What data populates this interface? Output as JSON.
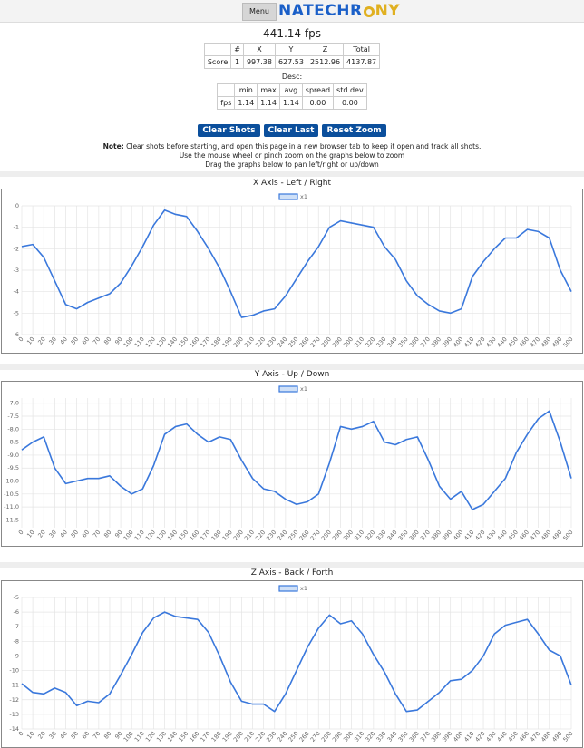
{
  "header": {
    "menu": "Menu",
    "logo_main": "NATECHR",
    "logo_accent": "NY"
  },
  "fps": "441.14 fps",
  "score_table": {
    "header": [
      "#",
      "X",
      "Y",
      "Z",
      "Total"
    ],
    "rows": [
      [
        "Score",
        "1",
        "997.38",
        "627.53",
        "2512.96",
        "4137.87"
      ]
    ]
  },
  "desc_label": "Desc:",
  "desc_table": {
    "header": [
      "min",
      "max",
      "avg",
      "spread",
      "std dev"
    ],
    "rows": [
      [
        "fps",
        "1.14",
        "1.14",
        "1.14",
        "0.00",
        "0.00"
      ]
    ]
  },
  "buttons": [
    "Clear Shots",
    "Clear Last",
    "Reset Zoom"
  ],
  "note": {
    "label": "Note:",
    "lines": [
      "Clear shots before starting, and open this page in a new browser tab to keep it open and track all shots.",
      "Use the mouse wheel or pinch zoom on the graphs below to zoom",
      "Drag the graphs below to pan left/right or up/down"
    ]
  },
  "chart_data": [
    {
      "type": "line",
      "title": "X Axis - Left / Right",
      "x": [
        0,
        10,
        20,
        30,
        40,
        50,
        60,
        70,
        80,
        90,
        100,
        110,
        120,
        130,
        140,
        150,
        160,
        170,
        180,
        190,
        200,
        210,
        220,
        230,
        240,
        250,
        260,
        270,
        280,
        290,
        300,
        310,
        320,
        330,
        340,
        350,
        360,
        370,
        380,
        390,
        400,
        410,
        420,
        430,
        440,
        450,
        460,
        470,
        480,
        490,
        500
      ],
      "series": [
        {
          "name": "x1",
          "color": "#3a78dc",
          "values": [
            -1.9,
            -1.8,
            -2.4,
            -3.5,
            -4.6,
            -4.8,
            -4.5,
            -4.3,
            -4.1,
            -3.6,
            -2.8,
            -1.9,
            -0.9,
            -0.2,
            -0.4,
            -0.5,
            -1.2,
            -2.0,
            -2.9,
            -4.0,
            -5.2,
            -5.1,
            -4.9,
            -4.8,
            -4.2,
            -3.4,
            -2.6,
            -1.9,
            -1.0,
            -0.7,
            -0.8,
            -0.9,
            -1.0,
            -1.9,
            -2.5,
            -3.5,
            -4.2,
            -4.6,
            -4.9,
            -5.0,
            -4.8,
            -3.3,
            -2.6,
            -2.0,
            -1.5,
            -1.5,
            -1.1,
            -1.2,
            -1.5,
            -3.0,
            -4.0
          ]
        }
      ],
      "xlim": [
        0,
        500
      ],
      "xticks": [
        0,
        10,
        20,
        30,
        40,
        50,
        60,
        70,
        80,
        90,
        100,
        110,
        120,
        130,
        140,
        150,
        160,
        170,
        180,
        190,
        200,
        210,
        220,
        230,
        240,
        250,
        260,
        270,
        280,
        290,
        300,
        310,
        320,
        330,
        340,
        350,
        360,
        370,
        380,
        390,
        400,
        410,
        420,
        430,
        440,
        450,
        460,
        470,
        480,
        490,
        500
      ],
      "ylim": [
        -6,
        0
      ],
      "yticks": [
        0,
        -1,
        -2,
        -3,
        -4,
        -5,
        -6
      ],
      "grid": true
    },
    {
      "type": "line",
      "title": "Y Axis - Up / Down",
      "x": [
        0,
        10,
        20,
        30,
        40,
        50,
        60,
        70,
        80,
        90,
        100,
        110,
        120,
        130,
        140,
        150,
        160,
        170,
        180,
        190,
        200,
        210,
        220,
        230,
        240,
        250,
        260,
        270,
        280,
        290,
        300,
        310,
        320,
        330,
        340,
        350,
        360,
        370,
        380,
        390,
        400,
        410,
        420,
        430,
        440,
        450,
        460,
        470,
        480,
        490,
        500
      ],
      "series": [
        {
          "name": "x1",
          "color": "#3a78dc",
          "values": [
            -8.8,
            -8.5,
            -8.3,
            -9.5,
            -10.1,
            -10.0,
            -9.9,
            -9.9,
            -9.8,
            -10.2,
            -10.5,
            -10.3,
            -9.4,
            -8.2,
            -7.9,
            -7.8,
            -8.2,
            -8.5,
            -8.3,
            -8.4,
            -9.2,
            -9.9,
            -10.3,
            -10.4,
            -10.7,
            -10.9,
            -10.8,
            -10.5,
            -9.3,
            -7.9,
            -8.0,
            -7.9,
            -7.7,
            -8.5,
            -8.6,
            -8.4,
            -8.3,
            -9.2,
            -10.2,
            -10.7,
            -10.4,
            -11.1,
            -10.9,
            -10.4,
            -9.9,
            -8.9,
            -8.2,
            -7.6,
            -7.3,
            -8.5,
            -9.9
          ]
        }
      ],
      "xlim": [
        0,
        500
      ],
      "xticks": [
        0,
        10,
        20,
        30,
        40,
        50,
        60,
        70,
        80,
        90,
        100,
        110,
        120,
        130,
        140,
        150,
        160,
        170,
        180,
        190,
        200,
        210,
        220,
        230,
        240,
        250,
        260,
        270,
        280,
        290,
        300,
        310,
        320,
        330,
        340,
        350,
        360,
        370,
        380,
        390,
        400,
        410,
        420,
        430,
        440,
        450,
        460,
        470,
        480,
        490,
        500
      ],
      "ylim": [
        -11.8,
        -6.8
      ],
      "yticks": [
        {
          "value": -7,
          "label": "-7.0"
        },
        -7.5,
        {
          "value": -8,
          "label": "-8.0"
        },
        -8.5,
        {
          "value": -9,
          "label": "-9.0"
        },
        -9.5,
        {
          "value": -10,
          "label": "-10.0"
        },
        -10.5,
        {
          "value": -11,
          "label": "-11.0"
        },
        -11.5
      ],
      "grid": true
    },
    {
      "type": "line",
      "title": "Z Axis - Back / Forth",
      "x": [
        0,
        10,
        20,
        30,
        40,
        50,
        60,
        70,
        80,
        90,
        100,
        110,
        120,
        130,
        140,
        150,
        160,
        170,
        180,
        190,
        200,
        210,
        220,
        230,
        240,
        250,
        260,
        270,
        280,
        290,
        300,
        310,
        320,
        330,
        340,
        350,
        360,
        370,
        380,
        390,
        400,
        410,
        420,
        430,
        440,
        450,
        460,
        470,
        480,
        490,
        500
      ],
      "series": [
        {
          "name": "x1",
          "color": "#3a78dc",
          "values": [
            -10.9,
            -11.5,
            -11.6,
            -11.2,
            -11.5,
            -12.4,
            -12.1,
            -12.2,
            -11.6,
            -10.3,
            -8.9,
            -7.4,
            -6.4,
            -6.0,
            -6.3,
            -6.4,
            -6.5,
            -7.4,
            -9.0,
            -10.8,
            -12.1,
            -12.3,
            -12.3,
            -12.8,
            -11.6,
            -10.0,
            -8.4,
            -7.1,
            -6.2,
            -6.8,
            -6.6,
            -7.5,
            -8.9,
            -10.1,
            -11.6,
            -12.8,
            -12.7,
            -12.1,
            -11.5,
            -10.7,
            -10.6,
            -10.0,
            -9.0,
            -7.5,
            -6.9,
            -6.7,
            -6.5,
            -7.5,
            -8.6,
            -9.0,
            -11.0
          ]
        }
      ],
      "xlim": [
        0,
        500
      ],
      "xticks": [
        0,
        10,
        20,
        30,
        40,
        50,
        60,
        70,
        80,
        90,
        100,
        110,
        120,
        130,
        140,
        150,
        160,
        170,
        180,
        190,
        200,
        210,
        220,
        230,
        240,
        250,
        260,
        270,
        280,
        290,
        300,
        310,
        320,
        330,
        340,
        350,
        360,
        370,
        380,
        390,
        400,
        410,
        420,
        430,
        440,
        450,
        460,
        470,
        480,
        490,
        500
      ],
      "ylim": [
        -14,
        -5
      ],
      "yticks": [
        -5,
        -6,
        -7,
        -8,
        -9,
        -10,
        -11,
        -12,
        -13,
        -14
      ],
      "grid": true
    }
  ]
}
